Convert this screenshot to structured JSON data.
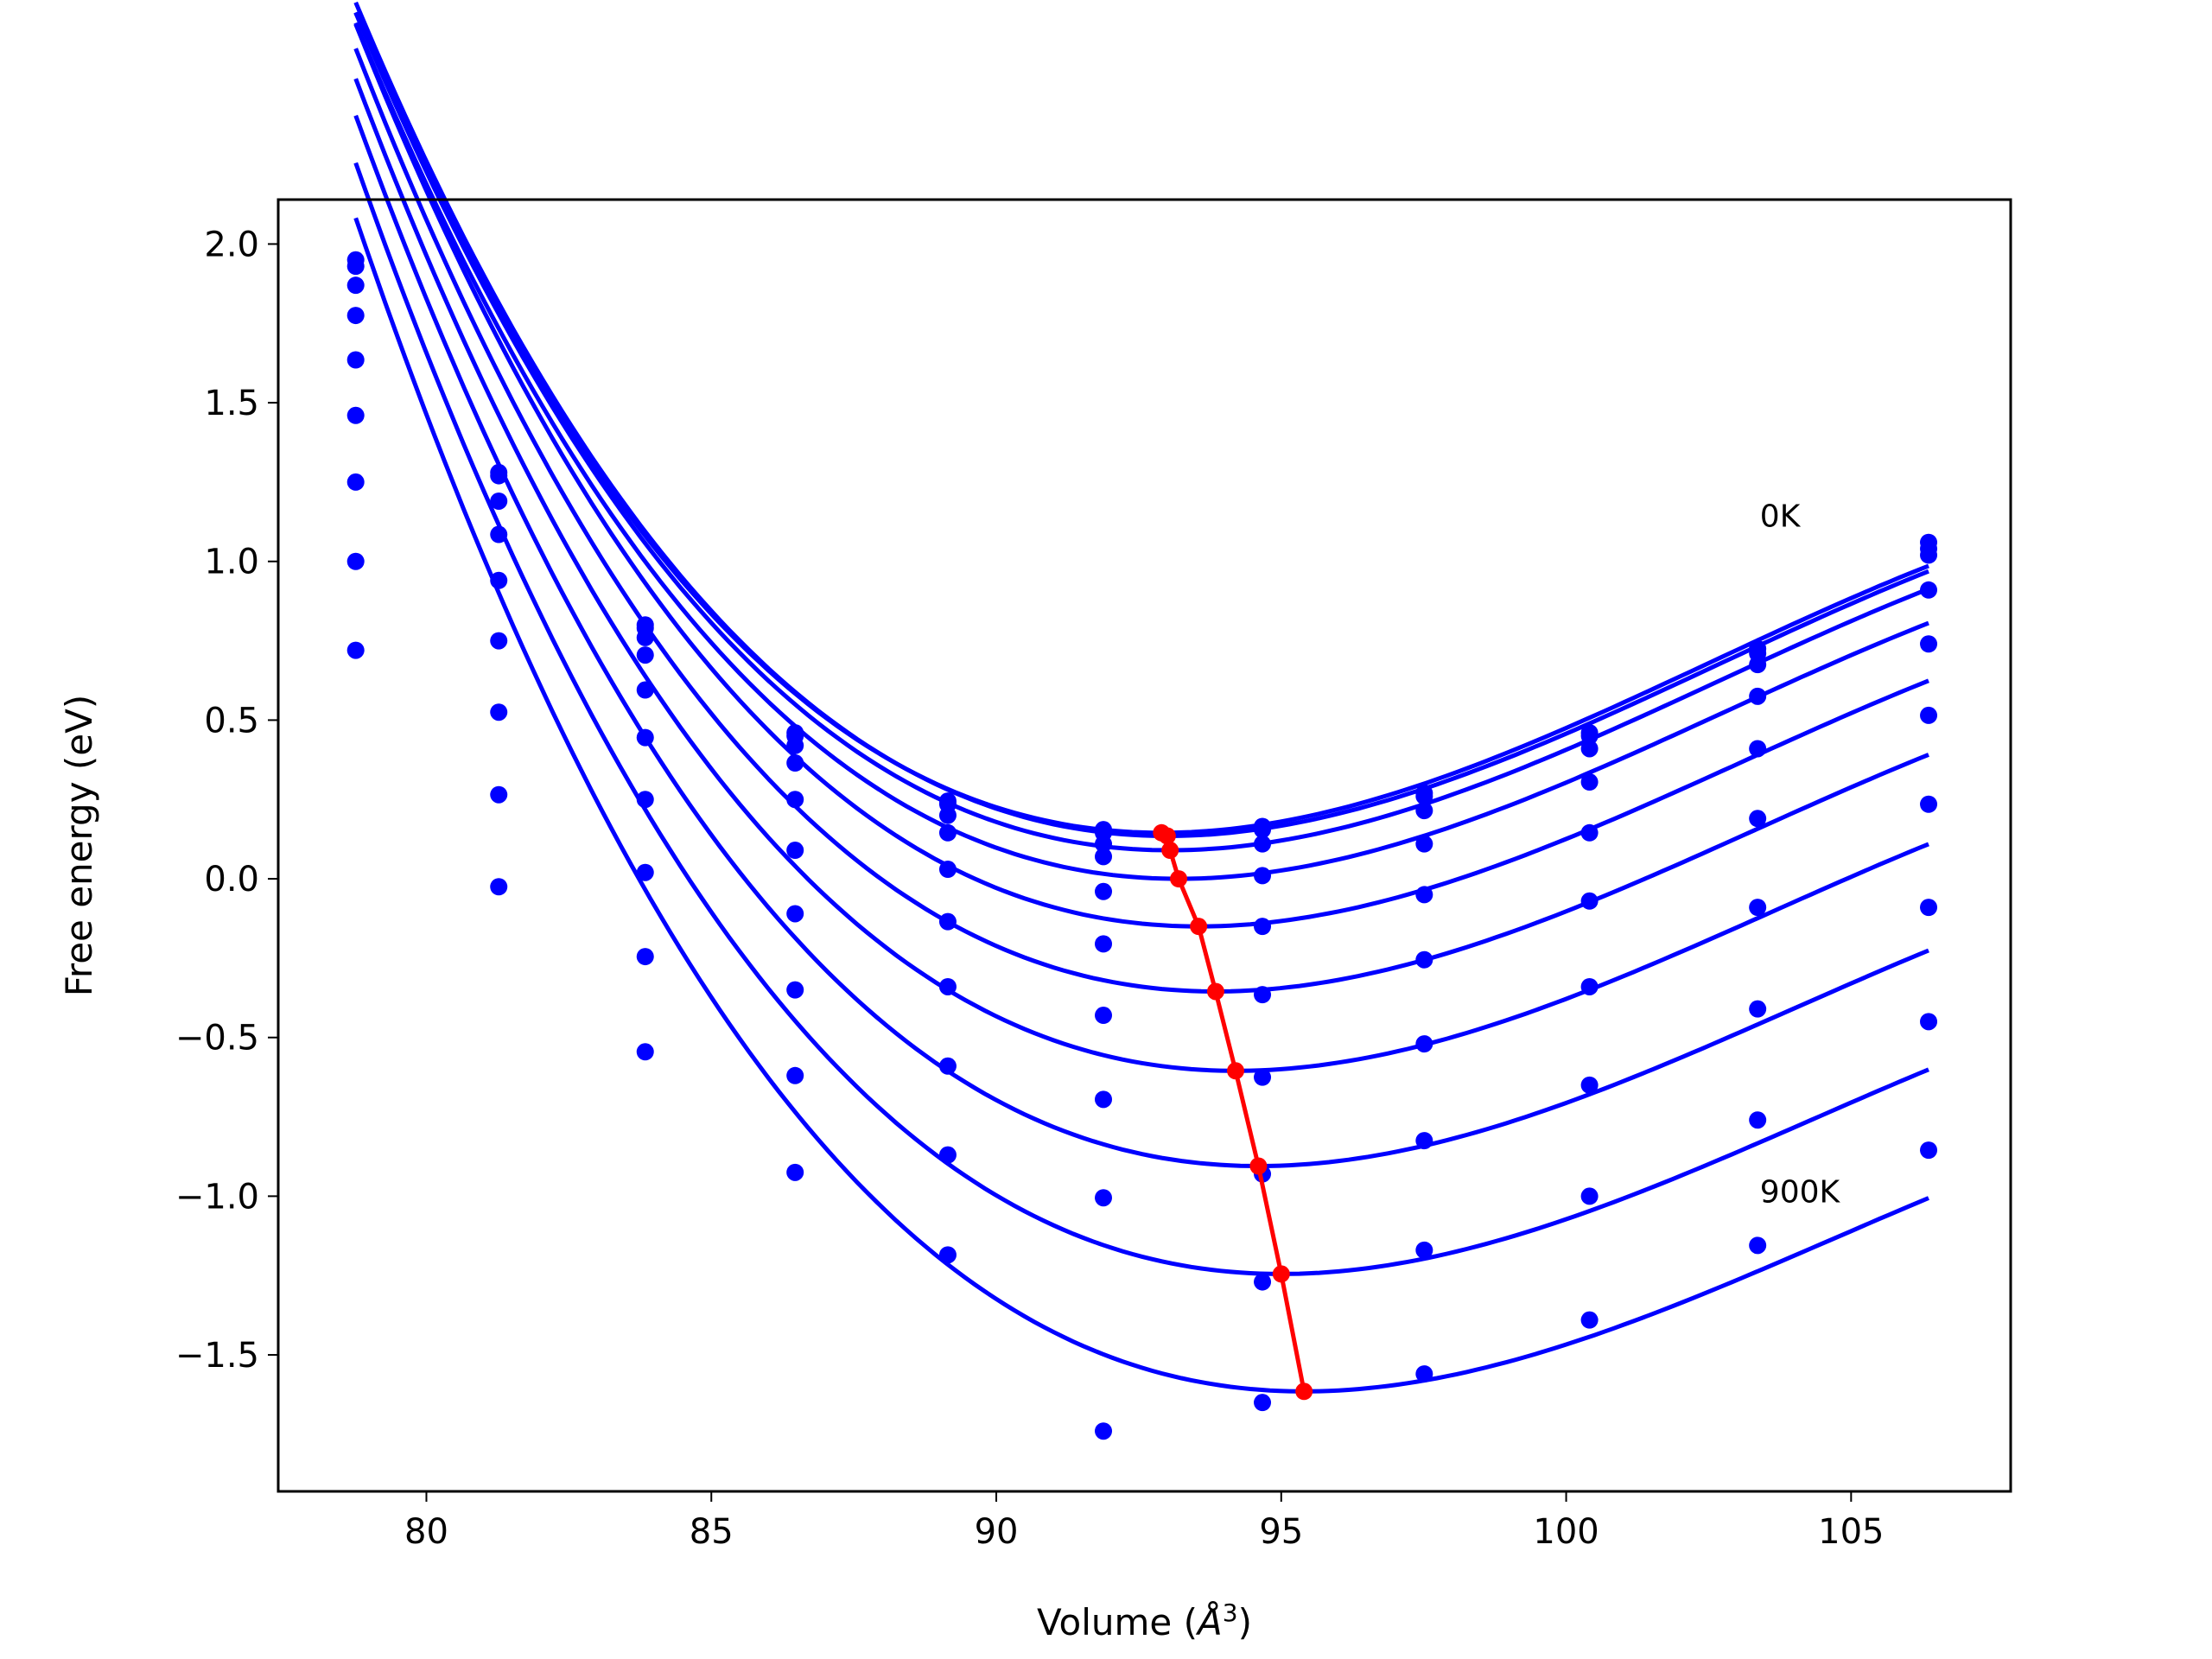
{
  "chart_data": {
    "type": "scatter",
    "title": "",
    "xlabel": "Volume (Å³)",
    "xlabel_main": "Volume (",
    "xlabel_unit": "Å",
    "xlabel_sup": "3",
    "xlabel_close": ")",
    "ylabel": "Free energy (eV)",
    "xlim": [
      77.4,
      107.8
    ],
    "ylim": [
      -1.93,
      2.14
    ],
    "xticks": [
      80,
      85,
      90,
      95,
      100,
      105
    ],
    "xtick_labels": [
      "80",
      "85",
      "90",
      "95",
      "100",
      "105"
    ],
    "yticks": [
      -1.5,
      -1.0,
      -0.5,
      0.0,
      0.5,
      1.0,
      1.5,
      2.0
    ],
    "ytick_labels": [
      "−1.5",
      "−1.0",
      "−0.5",
      "0.0",
      "0.5",
      "1.0",
      "1.5",
      "2.0"
    ],
    "grid": false,
    "colors": {
      "data": "#0000ff",
      "minima": "#ff0000"
    },
    "annotations": [
      {
        "text": "0K",
        "x": 103.4,
        "y": 1.11
      },
      {
        "text": "900K",
        "x": 103.4,
        "y": -1.02
      }
    ],
    "x": [
      78.76,
      81.27,
      83.84,
      86.47,
      89.15,
      91.88,
      94.67,
      97.51,
      100.41,
      103.36,
      106.36
    ],
    "series": [
      {
        "values": [
          1.95,
          1.28,
          0.8,
          0.46,
          0.245,
          0.155,
          0.165,
          0.27,
          0.46,
          0.725,
          1.06
        ],
        "fit": {
          "v0": 92.9,
          "emin": 0.145,
          "a": 0.00868,
          "b": 0.0003
        }
      },
      {
        "values": [
          1.93,
          1.27,
          0.79,
          0.45,
          0.235,
          0.145,
          0.155,
          0.26,
          0.45,
          0.71,
          1.04
        ],
        "fit": {
          "v0": 93.0,
          "emin": 0.135,
          "a": 0.00868,
          "b": 0.0003
        }
      },
      {
        "values": [
          1.87,
          1.19,
          0.76,
          0.42,
          0.2,
          0.11,
          0.11,
          0.215,
          0.41,
          0.675,
          1.02
        ],
        "fit": {
          "v0": 93.05,
          "emin": 0.09,
          "a": 0.00864,
          "b": 0.0003
        }
      },
      {
        "values": [
          1.775,
          1.085,
          0.705,
          0.365,
          0.145,
          0.07,
          0.01,
          0.11,
          0.305,
          0.575,
          0.91
        ],
        "fit": {
          "v0": 93.2,
          "emin": 0.0,
          "a": 0.0086,
          "b": 0.0003
        }
      },
      {
        "values": [
          1.635,
          0.94,
          0.595,
          0.25,
          0.03,
          -0.04,
          -0.15,
          -0.05,
          0.145,
          0.41,
          0.74
        ],
        "fit": {
          "v0": 93.55,
          "emin": -0.15,
          "a": 0.00856,
          "b": 0.0003
        }
      },
      {
        "values": [
          1.46,
          0.75,
          0.445,
          0.09,
          -0.135,
          -0.205,
          -0.365,
          -0.255,
          -0.07,
          0.19,
          0.515
        ],
        "fit": {
          "v0": 93.85,
          "emin": -0.355,
          "a": 0.00852,
          "b": 0.0003
        }
      },
      {
        "values": [
          1.25,
          0.525,
          0.25,
          -0.11,
          -0.34,
          -0.43,
          -0.625,
          -0.52,
          -0.34,
          -0.09,
          0.235
        ],
        "fit": {
          "v0": 94.2,
          "emin": -0.605,
          "a": 0.00848,
          "b": 0.0003
        }
      },
      {
        "values": [
          1.0,
          0.265,
          0.02,
          -0.35,
          -0.59,
          -0.695,
          -0.93,
          -0.825,
          -0.65,
          -0.41,
          -0.09
        ],
        "fit": {
          "v0": 94.6,
          "emin": -0.905,
          "a": 0.00844,
          "b": 0.0003
        }
      },
      {
        "values": [
          0.72,
          -0.025,
          -0.245,
          -0.62,
          -0.87,
          -1.005,
          -1.27,
          -1.17,
          -1.0,
          -0.76,
          -0.45
        ],
        "fit": {
          "v0": 95.0,
          "emin": -1.245,
          "a": 0.0084,
          "b": 0.0003
        }
      },
      {
        "values": [
          null,
          null,
          -0.545,
          -0.925,
          -1.185,
          -1.74,
          -1.65,
          -1.56,
          -1.39,
          -1.155,
          -0.855
        ],
        "fit": {
          "v0": 95.4,
          "emin": -1.615,
          "a": 0.00836,
          "b": 0.0003
        }
      }
    ],
    "minima": {
      "x": [
        92.9,
        93.0,
        93.05,
        93.2,
        93.55,
        93.85,
        94.2,
        94.6,
        95.0,
        95.4
      ],
      "y": [
        0.145,
        0.135,
        0.09,
        0.0,
        -0.15,
        -0.355,
        -0.605,
        -0.905,
        -1.245,
        -1.615
      ]
    }
  }
}
